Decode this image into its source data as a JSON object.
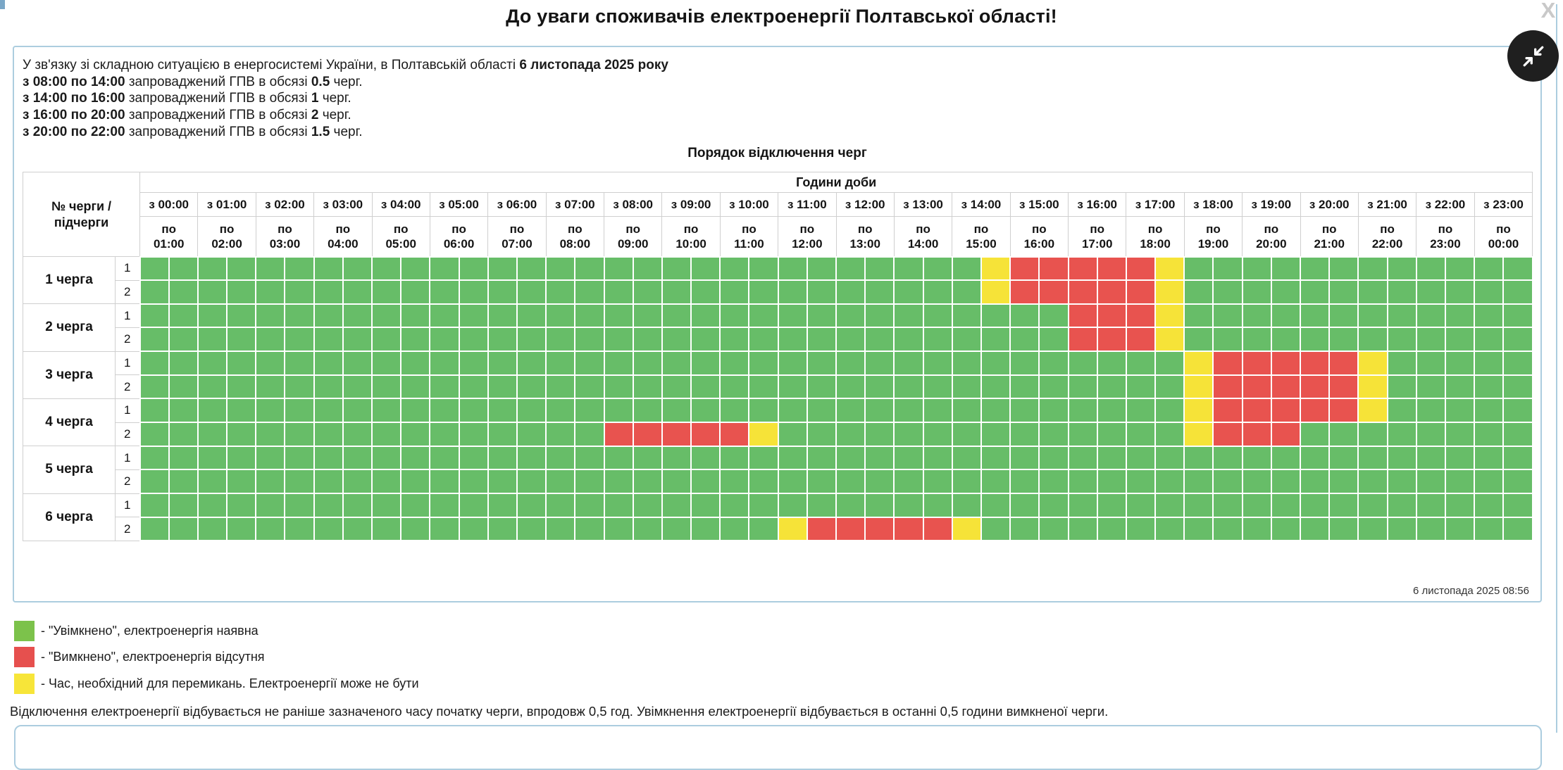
{
  "page": {
    "title": "До уваги споживачів електроенергії Полтавської області!",
    "close_label": "X"
  },
  "notice": {
    "intro_regular": "У зв'язку зі складною ситуацією в енергосистемі України, в Полтавській області ",
    "intro_bold": "6 листопада 2025 року",
    "lines": [
      {
        "range": "з 08:00 по 14:00",
        "middle": "запроваджений ГПВ в обсязі",
        "amount": "0.5",
        "suffix": "черг."
      },
      {
        "range": "з 14:00 по 16:00",
        "middle": "запроваджений ГПВ в обсязі",
        "amount": "1",
        "suffix": "черг."
      },
      {
        "range": "з 16:00 по 20:00",
        "middle": "запроваджений ГПВ в обсязі",
        "amount": "2",
        "suffix": "черг."
      },
      {
        "range": "з 20:00 по 22:00",
        "middle": "запроваджений ГПВ в обсязі",
        "amount": "1.5",
        "suffix": "черг."
      }
    ]
  },
  "table": {
    "title": "Порядок відключення черг",
    "corner_line1": "№ черги /",
    "corner_line2": "підчерги",
    "hours_header": "Години доби",
    "columns": [
      {
        "from": "з 00:00",
        "to": "по 01:00"
      },
      {
        "from": "з 01:00",
        "to": "по 02:00"
      },
      {
        "from": "з 02:00",
        "to": "по 03:00"
      },
      {
        "from": "з 03:00",
        "to": "по 04:00"
      },
      {
        "from": "з 04:00",
        "to": "по 05:00"
      },
      {
        "from": "з 05:00",
        "to": "по 06:00"
      },
      {
        "from": "з 06:00",
        "to": "по 07:00"
      },
      {
        "from": "з 07:00",
        "to": "по 08:00"
      },
      {
        "from": "з 08:00",
        "to": "по 09:00"
      },
      {
        "from": "з 09:00",
        "to": "по 10:00"
      },
      {
        "from": "з 10:00",
        "to": "по 11:00"
      },
      {
        "from": "з 11:00",
        "to": "по 12:00"
      },
      {
        "from": "з 12:00",
        "to": "по 13:00"
      },
      {
        "from": "з 13:00",
        "to": "по 14:00"
      },
      {
        "from": "з 14:00",
        "to": "по 15:00"
      },
      {
        "from": "з 15:00",
        "to": "по 16:00"
      },
      {
        "from": "з 16:00",
        "to": "по 17:00"
      },
      {
        "from": "з 17:00",
        "to": "по 18:00"
      },
      {
        "from": "з 18:00",
        "to": "по 19:00"
      },
      {
        "from": "з 19:00",
        "to": "по 20:00"
      },
      {
        "from": "з 20:00",
        "to": "по 21:00"
      },
      {
        "from": "з 21:00",
        "to": "по 22:00"
      },
      {
        "from": "з 22:00",
        "to": "по 23:00"
      },
      {
        "from": "з 23:00",
        "to": "по 00:00"
      }
    ],
    "groups": [
      {
        "label": "1 черга",
        "rows": [
          {
            "num": "1",
            "slots": "gggggggggggggggggggggggggggggyrrrrrygggggggggggg"
          },
          {
            "num": "2",
            "slots": "gggggggggggggggggggggggggggggyrrrrrygggggggggggg"
          }
        ]
      },
      {
        "label": "2 черга",
        "rows": [
          {
            "num": "1",
            "slots": "ggggggggggggggggggggggggggggggggrrrygggggggggggg"
          },
          {
            "num": "2",
            "slots": "ggggggggggggggggggggggggggggggggrrrygggggggggggg"
          }
        ]
      },
      {
        "label": "3 черга",
        "rows": [
          {
            "num": "1",
            "slots": "ggggggggggggggggggggggggggggggggggggyrrrrryggggg"
          },
          {
            "num": "2",
            "slots": "ggggggggggggggggggggggggggggggggggggyrrrrryggggg"
          }
        ]
      },
      {
        "label": "4 черга",
        "rows": [
          {
            "num": "1",
            "slots": "ggggggggggggggggggggggggggggggggggggyrrrrryggggg"
          },
          {
            "num": "2",
            "slots": "ggggggggggggggggrrrrryggggggggggggggyrrrgggggggg"
          }
        ]
      },
      {
        "label": "5 черга",
        "rows": [
          {
            "num": "1",
            "slots": "gggggggggggggggggggggggggggggggggggggggggggggggg"
          },
          {
            "num": "2",
            "slots": "gggggggggggggggggggggggggggggggggggggggggggggggg"
          }
        ]
      },
      {
        "label": "6 черга",
        "rows": [
          {
            "num": "1",
            "slots": "gggggggggggggggggggggggggggggggggggggggggggggggg"
          },
          {
            "num": "2",
            "slots": "ggggggggggggggggggggggyrrrrryggggggggggggggggggg"
          }
        ]
      }
    ],
    "timestamp": "6 листопада 2025 08:56"
  },
  "colors": {
    "on": "#67bd68",
    "off": "#e8534f",
    "maybe": "#f6e338",
    "panel_border": "#accddf"
  },
  "legend": {
    "items": [
      {
        "hex": "#7cc24b",
        "status": "on",
        "text": "- \"Увімкнено\", електроенергія наявна"
      },
      {
        "hex": "#e6504e",
        "status": "off",
        "text": "- \"Вимкнено\", електроенергія відсутня"
      },
      {
        "hex": "#f7e539",
        "status": "switch",
        "text": "- Час, необхідний для перемикань. Електроенергії може не бути"
      }
    ]
  },
  "footer": {
    "note": "Відключення електроенергії відбувається не раніше зазначеного часу початку черги, впродовж 0,5 год. Увімкнення електроенергії відбувається в останні 0,5 години вимкненої черги."
  }
}
